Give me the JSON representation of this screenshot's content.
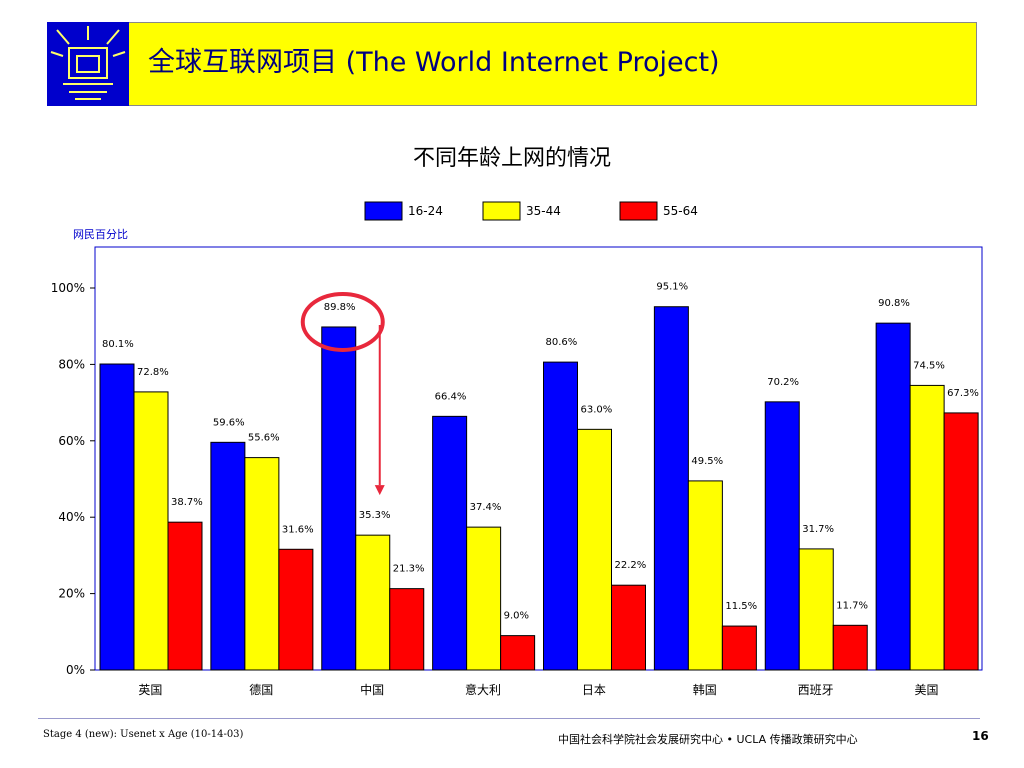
{
  "header": {
    "title": "全球互联网项目 (The World Internet Project)",
    "logo_icon": "window-frame-icon"
  },
  "chart_data": {
    "type": "bar",
    "title": "不同年龄上网的情况",
    "ylabel": "网民百分比",
    "ylim": [
      0,
      100
    ],
    "y_ticks": [
      "0%",
      "20%",
      "40%",
      "60%",
      "80%",
      "100%"
    ],
    "categories": [
      "英国",
      "德国",
      "中国",
      "意大利",
      "日本",
      "韩国",
      "西班牙",
      "美国"
    ],
    "legend_position": "top",
    "grid": false,
    "series": [
      {
        "name": "16-24",
        "color": "#0000ff",
        "values": [
          80.1,
          59.6,
          89.8,
          66.4,
          80.6,
          95.1,
          70.2,
          90.8
        ],
        "labels": [
          "80.1%",
          "59.6%",
          "89.8%",
          "66.4%",
          "80.6%",
          "95.1%",
          "70.2%",
          "90.8%"
        ]
      },
      {
        "name": "35-44",
        "color": "#ffff00",
        "values": [
          72.8,
          55.6,
          35.3,
          37.4,
          63.0,
          49.5,
          31.7,
          74.5
        ],
        "labels": [
          "72.8%",
          "55.6%",
          "35.3%",
          "37.4%",
          "63.0%",
          "49.5%",
          "31.7%",
          "74.5%"
        ]
      },
      {
        "name": "55-64",
        "color": "#ff0000",
        "values": [
          38.7,
          31.6,
          21.3,
          9.0,
          22.2,
          11.5,
          11.7,
          67.3
        ],
        "labels": [
          "38.7%",
          "31.6%",
          "21.3%",
          "9.0%",
          "22.2%",
          "11.5%",
          "11.7%",
          "67.3%"
        ]
      }
    ],
    "annotations": [
      {
        "type": "circle",
        "target": "中国 16-24",
        "color": "#e8283c"
      },
      {
        "type": "arrow",
        "direction": "down",
        "target": "中国 35-44",
        "color": "#e8283c"
      }
    ]
  },
  "footer": {
    "left": "Stage 4 (new): Usenet x Age (10-14-03)",
    "right": "中国社会科学院社会发展研究中心 • UCLA 传播政策研究中心",
    "page": "16"
  }
}
